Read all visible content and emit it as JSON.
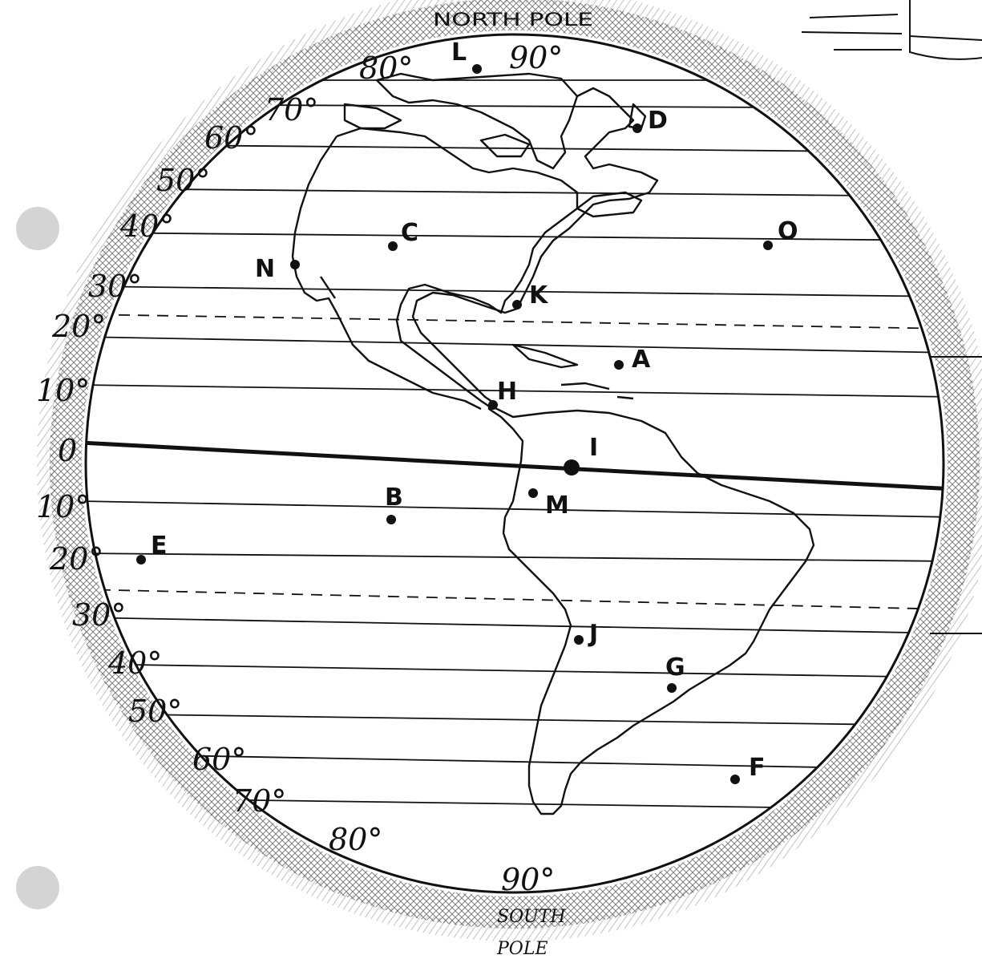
{
  "north_pole_label": "NORTH POLE",
  "south_pole_label_line1": "SOUTH",
  "south_pole_label_line2": "POLE",
  "north_90_label": "90°",
  "south_90_label": "90°",
  "north_latitudes": [
    "0",
    "10°",
    "20°",
    "30°",
    "40°",
    "50°",
    "60°",
    "70°",
    "80°"
  ],
  "south_latitudes": [
    "10°",
    "20°",
    "30°",
    "40°",
    "50°",
    "60°",
    "70°",
    "80°"
  ],
  "points": [
    {
      "id": "L",
      "label": "L"
    },
    {
      "id": "D",
      "label": "D"
    },
    {
      "id": "C",
      "label": "C"
    },
    {
      "id": "O",
      "label": "O"
    },
    {
      "id": "N",
      "label": "N"
    },
    {
      "id": "K",
      "label": "K"
    },
    {
      "id": "A",
      "label": "A"
    },
    {
      "id": "H",
      "label": "H"
    },
    {
      "id": "I",
      "label": "I"
    },
    {
      "id": "B",
      "label": "B"
    },
    {
      "id": "M",
      "label": "M"
    },
    {
      "id": "E",
      "label": "E"
    },
    {
      "id": "J",
      "label": "J"
    },
    {
      "id": "G",
      "label": "G"
    },
    {
      "id": "F",
      "label": "F"
    }
  ],
  "colors": {
    "ink": "#111111",
    "paper": "#ffffff",
    "hole": "#d4d4d4"
  }
}
